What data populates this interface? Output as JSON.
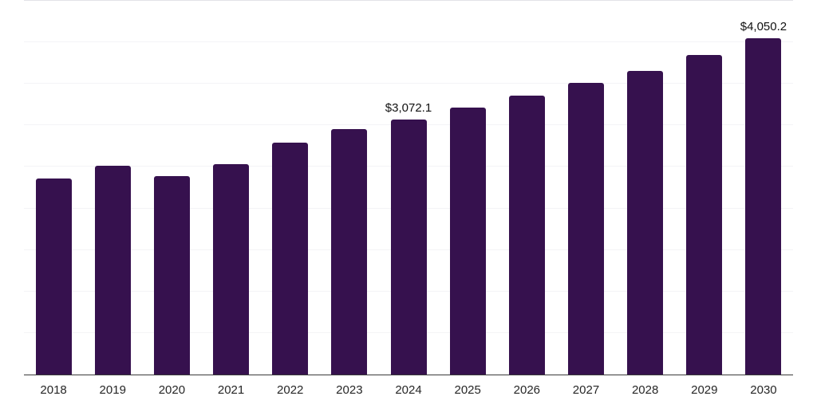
{
  "chart_data": {
    "type": "bar",
    "title": "",
    "xlabel": "",
    "ylabel": "",
    "categories": [
      "2018",
      "2019",
      "2020",
      "2021",
      "2022",
      "2023",
      "2024",
      "2025",
      "2026",
      "2027",
      "2028",
      "2029",
      "2030"
    ],
    "values": [
      2360,
      2510,
      2390,
      2535,
      2790,
      2955,
      3072.1,
      3210,
      3355,
      3510,
      3660,
      3850,
      4050.2
    ],
    "labeled_points": [
      {
        "category": "2024",
        "label": "$3,072.1"
      },
      {
        "category": "2030",
        "label": "$4,050.2"
      }
    ],
    "ylim": [
      0,
      4500
    ],
    "gridline_interval": 500,
    "grid": true,
    "legend": "none",
    "y_axis_labels_visible": false,
    "colors": {
      "bar": "#36114e",
      "background": "#ffffff",
      "gridline": "#f4f4f6",
      "top_gridline": "#e3e3e8",
      "axis_line": "#3a3a3a",
      "tick_label": "#262626",
      "data_label": "#111111"
    }
  }
}
